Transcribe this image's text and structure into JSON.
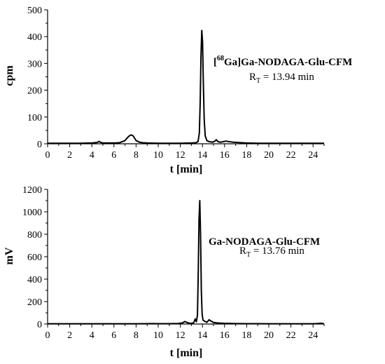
{
  "chart_data": [
    {
      "type": "line",
      "xlabel": "t [min]",
      "ylabel": "cpm",
      "xlim": [
        0,
        25
      ],
      "ylim": [
        0,
        500
      ],
      "xticks": [
        0,
        2,
        4,
        6,
        8,
        10,
        12,
        14,
        16,
        18,
        20,
        22,
        24
      ],
      "yticks": [
        0,
        100,
        200,
        300,
        400,
        500
      ],
      "grid": false,
      "annotation": {
        "compound_sup": "68",
        "compound_prefix": "[",
        "compound_suffix": "Ga]Ga-NODAGA-Glu-CFM",
        "rt_label": "R",
        "rt_sub": "T",
        "rt_value": " = 13.94 min"
      },
      "series": [
        {
          "x": [
            0,
            1,
            2,
            3,
            4,
            4.5,
            4.65,
            4.8,
            5.0,
            5.5,
            6,
            6.5,
            7.0,
            7.2,
            7.4,
            7.55,
            7.7,
            7.85,
            8.0,
            8.3,
            8.6,
            9,
            10,
            11,
            12,
            13,
            13.4,
            13.6,
            13.72,
            13.8,
            13.87,
            13.94,
            14.01,
            14.08,
            14.16,
            14.25,
            14.4,
            14.6,
            14.9,
            15.1,
            15.25,
            15.4,
            15.6,
            15.9,
            16.1,
            16.4,
            16.8,
            17.5,
            18,
            19,
            20,
            21,
            22,
            23,
            24,
            25
          ],
          "y": [
            2,
            2,
            2,
            2,
            3,
            5,
            9,
            5,
            3,
            3,
            3,
            4,
            12,
            22,
            30,
            33,
            31,
            22,
            12,
            6,
            4,
            3,
            2,
            2,
            2,
            3,
            4,
            8,
            40,
            160,
            330,
            423,
            380,
            230,
            90,
            30,
            12,
            8,
            6,
            9,
            15,
            8,
            6,
            8,
            10,
            8,
            6,
            4,
            3,
            2,
            2,
            2,
            2,
            2,
            2,
            2
          ]
        }
      ]
    },
    {
      "type": "line",
      "xlabel": "t [min]",
      "ylabel": "mV",
      "xlim": [
        0,
        25
      ],
      "ylim": [
        0,
        1200
      ],
      "xticks": [
        0,
        2,
        4,
        6,
        8,
        10,
        12,
        14,
        16,
        18,
        20,
        22,
        24
      ],
      "yticks": [
        0,
        200,
        400,
        600,
        800,
        1000,
        1200
      ],
      "grid": false,
      "annotation": {
        "compound_sup": "",
        "compound_prefix": "",
        "compound_suffix": "Ga-NODAGA-Glu-CFM",
        "rt_label": "R",
        "rt_sub": "T",
        "rt_value": " = 13.76 min"
      },
      "series": [
        {
          "x": [
            0,
            1,
            2,
            3,
            4,
            5,
            6,
            7,
            8,
            9,
            9.5,
            10,
            11,
            11.8,
            12.2,
            12.4,
            12.6,
            12.8,
            13.0,
            13.2,
            13.35,
            13.45,
            13.55,
            13.62,
            13.69,
            13.76,
            13.83,
            13.9,
            13.97,
            14.05,
            14.2,
            14.4,
            14.6,
            14.8,
            15.0,
            15.3,
            15.6,
            16,
            17,
            18,
            19,
            20,
            21,
            22,
            23,
            24,
            24.4,
            24.7,
            25
          ],
          "y": [
            2,
            2,
            2,
            2,
            2,
            2,
            2,
            2,
            2,
            3,
            4,
            3,
            3,
            5,
            10,
            22,
            14,
            8,
            6,
            10,
            45,
            20,
            80,
            450,
            930,
            1100,
            800,
            300,
            90,
            35,
            25,
            15,
            38,
            25,
            14,
            10,
            8,
            6,
            4,
            3,
            3,
            2,
            2,
            2,
            2,
            2,
            4,
            6,
            3
          ]
        }
      ]
    }
  ]
}
